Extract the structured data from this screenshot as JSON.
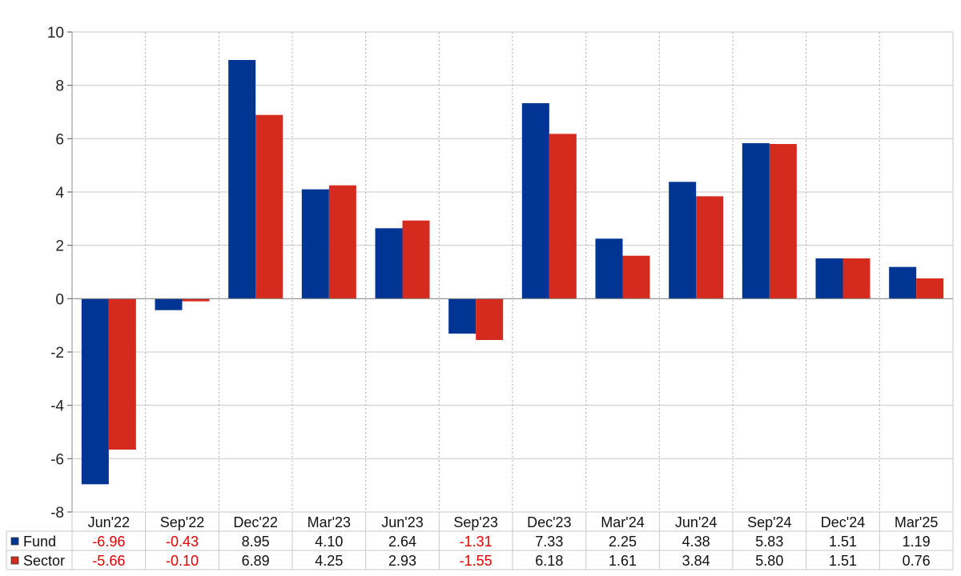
{
  "chart_data": {
    "type": "bar",
    "title": "",
    "xlabel": "",
    "ylabel": "",
    "ylim": [
      -8,
      10
    ],
    "yticks": [
      10,
      8,
      6,
      4,
      2,
      0,
      -2,
      -4,
      -6,
      -8
    ],
    "grid": true,
    "legend": "data-table-left",
    "categories": [
      "Jun'22",
      "Sep'22",
      "Dec'22",
      "Mar'23",
      "Jun'23",
      "Sep'23",
      "Dec'23",
      "Mar'24",
      "Jun'24",
      "Sep'24",
      "Dec'24",
      "Mar'25"
    ],
    "series": [
      {
        "name": "Fund",
        "color": "#003594",
        "values": [
          -6.96,
          -0.43,
          8.95,
          4.1,
          2.64,
          -1.31,
          7.33,
          2.25,
          4.38,
          5.83,
          1.51,
          1.19
        ],
        "labels": [
          "-6.96",
          "-0.43",
          "8.95",
          "4.10",
          "2.64",
          "-1.31",
          "7.33",
          "2.25",
          "4.38",
          "5.83",
          "1.51",
          "1.19"
        ]
      },
      {
        "name": "Sector",
        "color": "#d52b1e",
        "values": [
          -5.66,
          -0.1,
          6.89,
          4.25,
          2.93,
          -1.55,
          6.18,
          1.61,
          3.84,
          5.8,
          1.51,
          0.76
        ],
        "labels": [
          "-5.66",
          "-0.10",
          "6.89",
          "4.25",
          "2.93",
          "-1.55",
          "6.18",
          "1.61",
          "3.84",
          "5.80",
          "1.51",
          "0.76"
        ]
      }
    ],
    "negative_value_color": "#e00000"
  }
}
